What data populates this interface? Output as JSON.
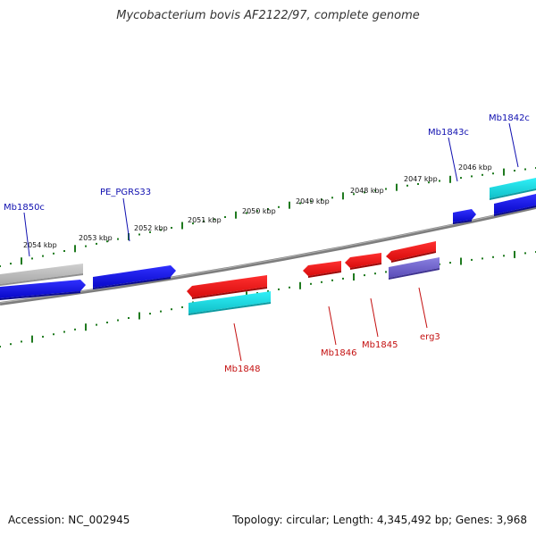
{
  "title": "Mycobacterium bovis AF2122/97, complete genome",
  "accession": "Accession: NC_002945",
  "topology": "Topology: circular; Length: 4,345,492 bp; Genes: 3,968",
  "colors": {
    "forward_gene": "#1010e0",
    "reverse_gene": "#e01818",
    "cyan_feature": "#18d8e0",
    "gray_feature": "#bcbcbc",
    "purple_feature": "#7466cc",
    "tick": "#1f7a1f",
    "backbone": "#7d7d7d",
    "label_blue": "#1010b0",
    "label_red": "#c41010"
  },
  "kbp_labels": [
    "2054 kbp",
    "2053 kbp",
    "2052 kbp",
    "2051 kbp",
    "2050 kbp",
    "2049 kbp",
    "2048 kbp",
    "2047 kbp",
    "2046 kbp"
  ],
  "gene_labels": {
    "mb1850c": "Mb1850c",
    "pe_pgrs33": "PE_PGRS33",
    "mb1843c": "Mb1843c",
    "mb1842c": "Mb1842c",
    "mb1848": "Mb1848",
    "mb1846": "Mb1846",
    "mb1845": "Mb1845",
    "erg3": "erg3"
  }
}
